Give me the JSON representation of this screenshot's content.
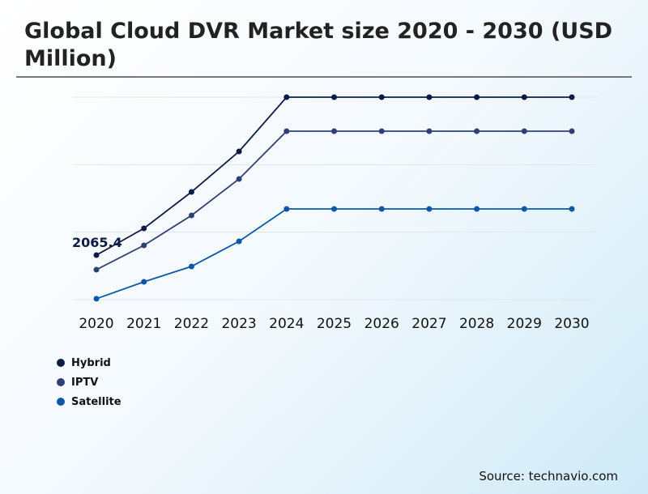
{
  "title": "Global Cloud DVR Market size 2020 - 2030 (USD Million)",
  "source": "Source: technavio.com",
  "chart_data": {
    "type": "line",
    "title": "Global Cloud DVR Market size 2020 - 2030 (USD Million)",
    "categories": [
      "2020",
      "2021",
      "2022",
      "2023",
      "2024",
      "2025",
      "2026",
      "2027",
      "2028",
      "2029",
      "2030"
    ],
    "ylim": [
      0,
      9388
    ],
    "grid": true,
    "legend": "bottom-left",
    "series": [
      {
        "name": "Hybrid",
        "color": "#0c1c45",
        "values": [
          2065.4,
          3304,
          4994,
          6872,
          9388,
          9388,
          9388,
          9388,
          9388,
          9388,
          9388
        ]
      },
      {
        "name": "IPTV",
        "color": "#2e3f75",
        "values": [
          1389,
          2516,
          3905,
          5595,
          7810,
          7810,
          7810,
          7810,
          7810,
          7810,
          7810
        ]
      },
      {
        "name": "Satellite",
        "color": "#0b59a6",
        "values": [
          40,
          826,
          1540,
          2704,
          4206,
          4206,
          4206,
          4206,
          4206,
          4206,
          4206
        ]
      }
    ],
    "annotations": [
      {
        "series": "Hybrid",
        "category": "2020",
        "text": "2065.4"
      }
    ]
  }
}
